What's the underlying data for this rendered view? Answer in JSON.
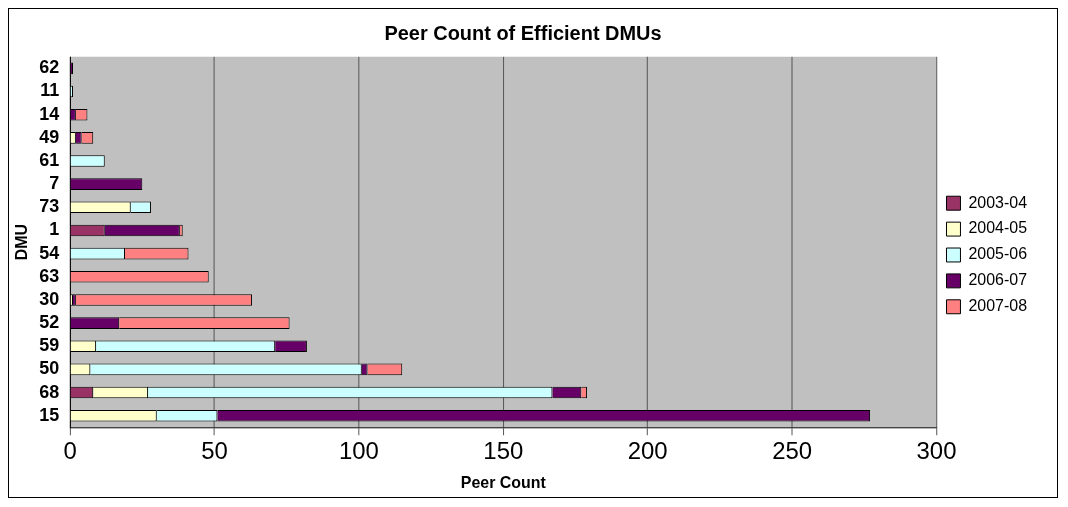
{
  "chart_data": {
    "type": "bar",
    "orientation": "horizontal",
    "stacked": true,
    "title": "Peer Count of Efficient DMUs",
    "xlabel": "Peer Count",
    "ylabel": "DMU",
    "categories": [
      "62",
      "11",
      "14",
      "49",
      "61",
      "7",
      "73",
      "1",
      "54",
      "63",
      "30",
      "52",
      "59",
      "50",
      "68",
      "15"
    ],
    "series": [
      {
        "name": "2003-04",
        "color": "#993366",
        "values": [
          null,
          null,
          null,
          null,
          null,
          null,
          null,
          12,
          null,
          null,
          null,
          null,
          null,
          null,
          8,
          null
        ]
      },
      {
        "name": "2004-05",
        "color": "#ffffcc",
        "values": [
          null,
          null,
          null,
          2,
          null,
          null,
          21,
          null,
          null,
          null,
          1,
          null,
          9,
          7,
          19,
          30
        ]
      },
      {
        "name": "2005-06",
        "color": "#ccffff",
        "values": [
          null,
          1,
          null,
          null,
          12,
          null,
          7,
          null,
          19,
          null,
          null,
          null,
          62,
          94,
          140,
          21
        ]
      },
      {
        "name": "2006-07",
        "color": "#660066",
        "values": [
          1,
          null,
          2,
          2,
          null,
          25,
          null,
          26,
          null,
          null,
          1,
          17,
          11,
          2,
          10,
          226
        ]
      },
      {
        "name": "2007-08",
        "color": "#ff8080",
        "values": [
          null,
          null,
          4,
          4,
          null,
          null,
          null,
          1,
          22,
          48,
          61,
          59,
          null,
          12,
          2,
          null
        ]
      }
    ],
    "xlim": [
      0,
      300
    ],
    "xticks": [
      0,
      50,
      100,
      150,
      200,
      250,
      300
    ],
    "grid": "x",
    "legend": "right"
  }
}
